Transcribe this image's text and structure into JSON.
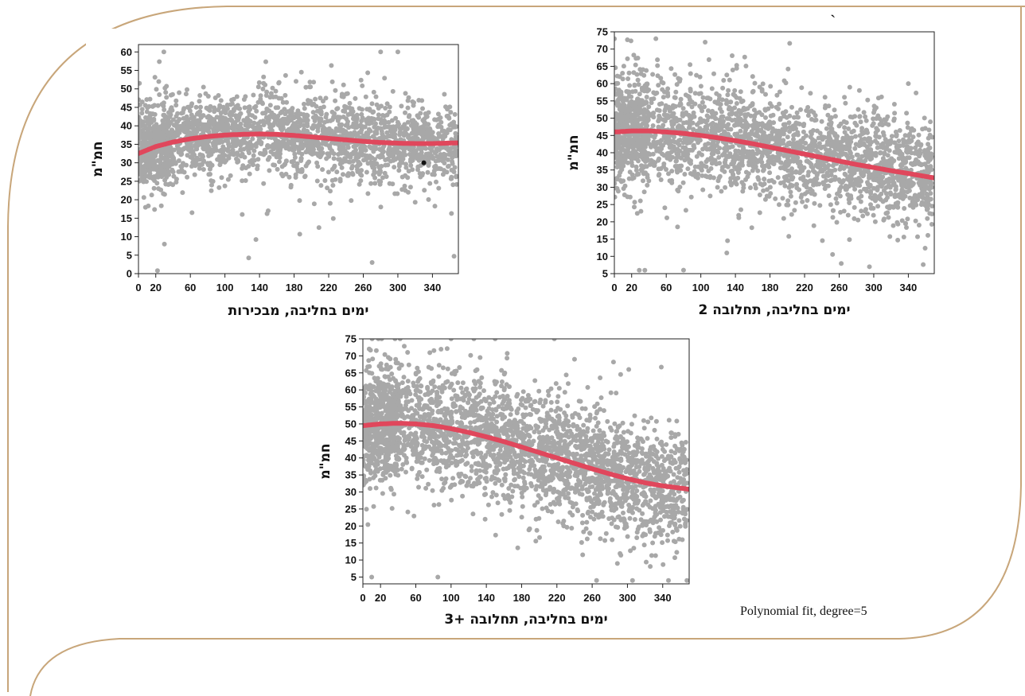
{
  "theme": {
    "frame_color": "#c8a67a",
    "point_color": "#a8a8a8",
    "fit_color": "#e0475c"
  },
  "note": "Polynomial fit, degree=5",
  "stray_mark": "`",
  "chart_data": [
    {
      "id": "firsts",
      "type": "scatter",
      "xlabel": "ימים בחליבה, מבכירות",
      "ylabel": "חמ\"מ",
      "xlim": [
        0,
        370
      ],
      "ylim": [
        0,
        62
      ],
      "xticks": [
        0,
        20,
        60,
        100,
        140,
        180,
        220,
        260,
        300,
        340
      ],
      "yticks": [
        0,
        5,
        10,
        15,
        20,
        25,
        30,
        35,
        40,
        45,
        50,
        55,
        60
      ],
      "scatter": {
        "n": 2400,
        "spread": 5.5,
        "y_min": 0.5,
        "y_max": 60
      },
      "outliers": [
        [
          22,
          0.8
        ],
        [
          30,
          8
        ],
        [
          300,
          60
        ],
        [
          365,
          4.7
        ],
        [
          120,
          16
        ],
        [
          150,
          17
        ]
      ],
      "highlight": [
        [
          330,
          30
        ]
      ],
      "fit_line": {
        "x": [
          0,
          20,
          40,
          60,
          80,
          100,
          120,
          140,
          160,
          180,
          200,
          220,
          240,
          260,
          280,
          300,
          320,
          340,
          370
        ],
        "y": [
          32.5,
          34.4,
          35.6,
          36.5,
          37.1,
          37.5,
          37.7,
          37.8,
          37.7,
          37.4,
          37.0,
          36.6,
          36.2,
          35.8,
          35.5,
          35.3,
          35.2,
          35.2,
          35.4
        ]
      }
    },
    {
      "id": "second",
      "type": "scatter",
      "xlabel": "ימים בחליבה, תחלובה 2",
      "ylabel": "חמ\"מ",
      "xlim": [
        0,
        370
      ],
      "ylim": [
        5,
        75
      ],
      "xticks": [
        0,
        20,
        60,
        100,
        140,
        180,
        220,
        260,
        300,
        340
      ],
      "yticks": [
        5,
        10,
        15,
        20,
        25,
        30,
        35,
        40,
        45,
        50,
        55,
        60,
        65,
        70,
        75
      ],
      "scatter": {
        "n": 2600,
        "spread": 7.5,
        "y_min": 6,
        "y_max": 73
      },
      "outliers": [
        [
          48,
          73
        ],
        [
          105,
          72
        ],
        [
          80,
          6
        ],
        [
          130,
          11
        ],
        [
          295,
          7
        ],
        [
          340,
          60
        ]
      ],
      "highlight": [],
      "fit_line": {
        "x": [
          0,
          20,
          40,
          60,
          80,
          100,
          120,
          140,
          160,
          180,
          200,
          220,
          240,
          260,
          280,
          300,
          320,
          340,
          370
        ],
        "y": [
          46.0,
          46.3,
          46.3,
          46.0,
          45.6,
          45.0,
          44.3,
          43.5,
          42.6,
          41.6,
          40.6,
          39.6,
          38.6,
          37.6,
          36.6,
          35.7,
          34.8,
          34.0,
          32.7
        ]
      }
    },
    {
      "id": "third",
      "type": "scatter",
      "xlabel": "ימים בחליבה, תחלובה +3",
      "ylabel": "חמ\"מ",
      "xlim": [
        0,
        370
      ],
      "ylim": [
        3,
        75
      ],
      "xticks": [
        0,
        20,
        60,
        100,
        140,
        180,
        220,
        260,
        300,
        340
      ],
      "yticks": [
        5,
        10,
        15,
        20,
        25,
        30,
        35,
        40,
        45,
        50,
        55,
        60,
        65,
        70,
        75
      ],
      "scatter": {
        "n": 3000,
        "spread": 8.5,
        "y_min": 4,
        "y_max": 75
      },
      "outliers": [
        [
          10,
          5
        ],
        [
          85,
          5
        ],
        [
          265,
          4
        ],
        [
          150,
          75
        ],
        [
          100,
          75
        ],
        [
          240,
          69
        ]
      ],
      "highlight": [],
      "fit_line": {
        "x": [
          0,
          20,
          40,
          60,
          80,
          100,
          120,
          140,
          160,
          180,
          200,
          220,
          240,
          260,
          280,
          300,
          320,
          340,
          370
        ],
        "y": [
          49.5,
          50.0,
          50.2,
          50.0,
          49.5,
          48.6,
          47.5,
          46.2,
          44.8,
          43.2,
          41.6,
          40.0,
          38.4,
          36.8,
          35.3,
          33.9,
          32.7,
          31.8,
          30.8
        ]
      }
    }
  ]
}
